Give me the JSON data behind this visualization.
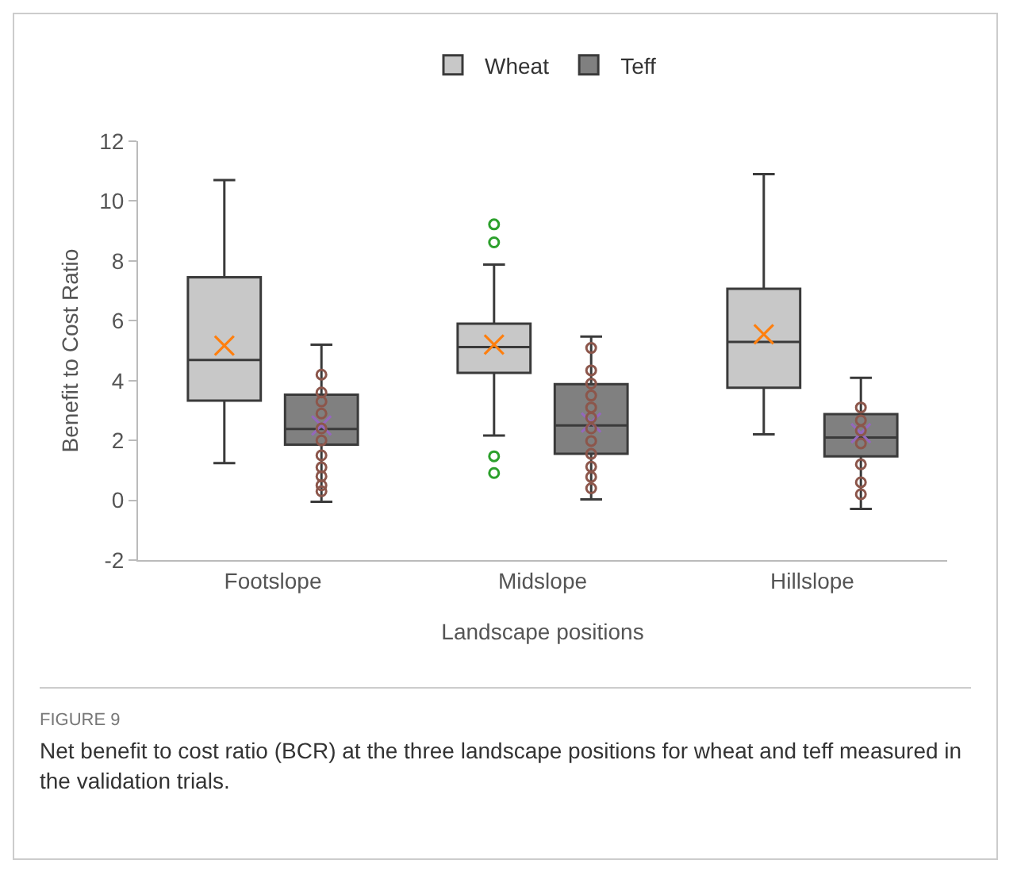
{
  "chart_data": {
    "type": "box",
    "xlabel": "Landscape positions",
    "ylabel": "Benefit to Cost Ratio",
    "categories": [
      "Footslope",
      "Midslope",
      "Hillslope"
    ],
    "series": [
      {
        "name": "Wheat",
        "color": "#c8c8c8",
        "boxes": [
          {
            "low": 1.24,
            "q1": 3.33,
            "median": 4.69,
            "q3": 7.45,
            "high": 10.7,
            "mean": 5.17
          },
          {
            "low": 2.16,
            "q1": 4.26,
            "median": 5.12,
            "q3": 5.9,
            "high": 7.88,
            "mean": 5.2,
            "outliers": [
              9.22,
              8.62,
              1.47,
              0.91
            ]
          },
          {
            "low": 2.2,
            "q1": 3.76,
            "median": 5.29,
            "q3": 7.07,
            "high": 10.9,
            "mean": 5.55
          }
        ]
      },
      {
        "name": "Teff",
        "color": "#808080",
        "boxes": [
          {
            "low": -0.05,
            "q1": 1.86,
            "median": 2.38,
            "q3": 3.53,
            "high": 5.2,
            "mean": 2.5,
            "outliers": [
              4.2,
              3.6,
              3.3,
              2.9,
              2.4,
              2.0,
              1.5,
              1.1,
              0.8,
              0.5,
              0.3
            ]
          },
          {
            "low": 0.03,
            "q1": 1.55,
            "median": 2.5,
            "q3": 3.88,
            "high": 5.47,
            "mean": 2.6,
            "outliers": [
              5.09,
              4.34,
              3.9,
              3.5,
              3.1,
              2.76,
              2.4,
              1.98,
              1.55,
              1.12,
              0.78,
              0.4
            ]
          },
          {
            "low": -0.29,
            "q1": 1.47,
            "median": 2.1,
            "q3": 2.88,
            "high": 4.09,
            "mean": 2.24,
            "outliers": [
              3.1,
              2.67,
              2.33,
              1.9,
              1.2,
              0.6,
              0.2
            ]
          }
        ]
      }
    ],
    "ylim": [
      -2,
      12
    ],
    "yticks": [
      -2,
      0,
      2,
      4,
      6,
      8,
      10,
      12
    ],
    "grid": false,
    "legend": "top",
    "marker": "circle",
    "annotations": [
      "FIGURE 9",
      "Net benefit to cost ratio (BCR) at the three landscape positions for wheat and teff measured in the validation trials."
    ]
  }
}
